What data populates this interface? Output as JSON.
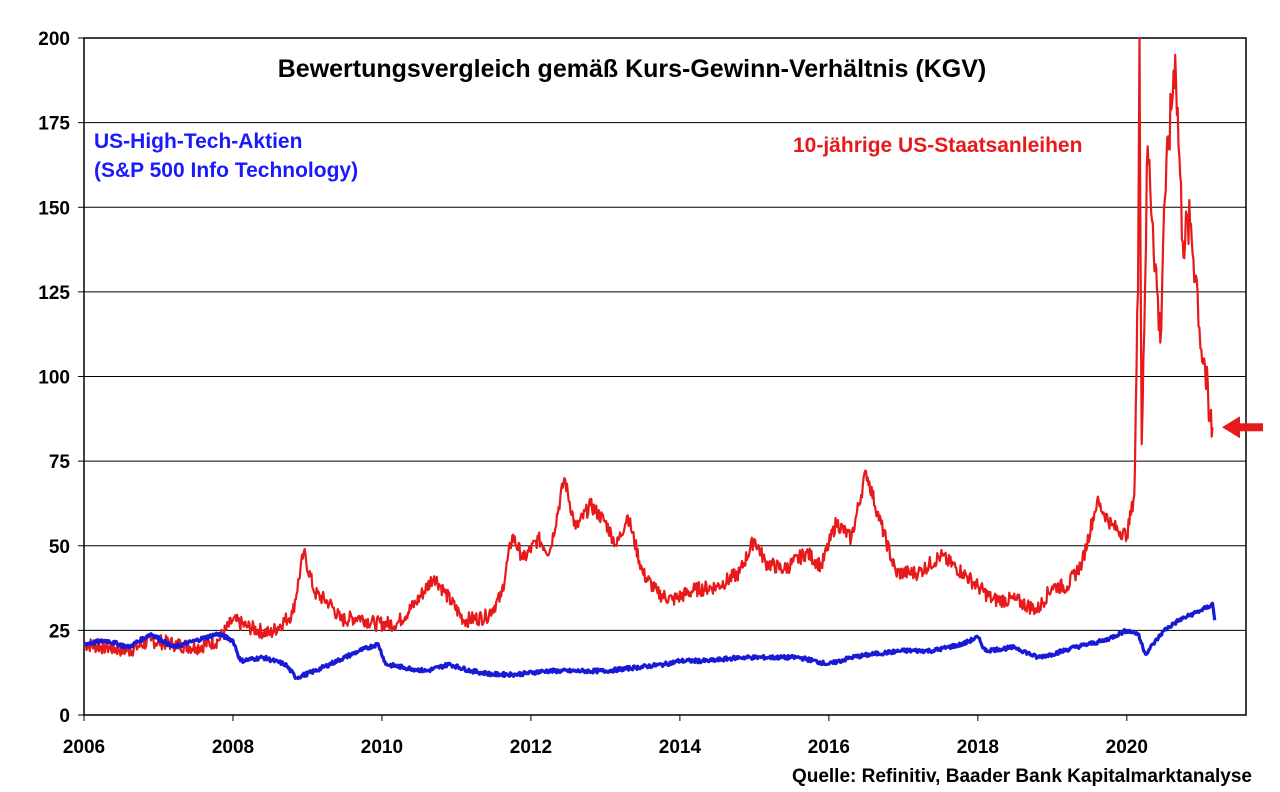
{
  "chart_data": {
    "type": "line",
    "title": "Bewertungsvergleich gemäß Kurs-Gewinn-Verhältnis (KGV)",
    "xlabel": "",
    "ylabel": "",
    "xlim": [
      2006,
      2021.6
    ],
    "ylim": [
      0,
      200
    ],
    "x_ticks": [
      "2006",
      "2008",
      "2010",
      "2012",
      "2014",
      "2016",
      "2018",
      "2020"
    ],
    "y_ticks": [
      "0",
      "25",
      "50",
      "75",
      "100",
      "125",
      "150",
      "175",
      "200"
    ],
    "grid": "horizontal",
    "series": [
      {
        "name": "10-jährige US-Staatsanleihen",
        "color": "#e8191a",
        "points": [
          [
            2006.0,
            21
          ],
          [
            2006.3,
            20
          ],
          [
            2006.6,
            19
          ],
          [
            2006.9,
            22
          ],
          [
            2007.2,
            21
          ],
          [
            2007.5,
            20
          ],
          [
            2007.8,
            22
          ],
          [
            2008.0,
            28
          ],
          [
            2008.2,
            26
          ],
          [
            2008.5,
            24
          ],
          [
            2008.8,
            30
          ],
          [
            2008.95,
            48
          ],
          [
            2009.1,
            36
          ],
          [
            2009.3,
            33
          ],
          [
            2009.45,
            28
          ],
          [
            2009.7,
            29
          ],
          [
            2009.9,
            27
          ],
          [
            2010.2,
            27
          ],
          [
            2010.45,
            33
          ],
          [
            2010.7,
            41
          ],
          [
            2010.85,
            36
          ],
          [
            2011.1,
            28
          ],
          [
            2011.4,
            29
          ],
          [
            2011.6,
            35
          ],
          [
            2011.75,
            53
          ],
          [
            2011.9,
            46
          ],
          [
            2012.1,
            52
          ],
          [
            2012.25,
            48
          ],
          [
            2012.45,
            70
          ],
          [
            2012.6,
            55
          ],
          [
            2012.8,
            62
          ],
          [
            2013.0,
            57
          ],
          [
            2013.15,
            50
          ],
          [
            2013.3,
            59
          ],
          [
            2013.5,
            42
          ],
          [
            2013.7,
            36
          ],
          [
            2013.9,
            34
          ],
          [
            2014.2,
            37
          ],
          [
            2014.5,
            38
          ],
          [
            2014.8,
            42
          ],
          [
            2015.0,
            52
          ],
          [
            2015.15,
            45
          ],
          [
            2015.4,
            43
          ],
          [
            2015.7,
            48
          ],
          [
            2015.9,
            44
          ],
          [
            2016.1,
            57
          ],
          [
            2016.3,
            52
          ],
          [
            2016.5,
            72
          ],
          [
            2016.65,
            60
          ],
          [
            2016.9,
            42
          ],
          [
            2017.2,
            42
          ],
          [
            2017.5,
            47
          ],
          [
            2017.8,
            42
          ],
          [
            2018.0,
            38
          ],
          [
            2018.2,
            34
          ],
          [
            2018.5,
            34
          ],
          [
            2018.8,
            31
          ],
          [
            2019.0,
            38
          ],
          [
            2019.2,
            38
          ],
          [
            2019.4,
            45
          ],
          [
            2019.6,
            63
          ],
          [
            2019.8,
            56
          ],
          [
            2020.0,
            53
          ],
          [
            2020.1,
            65
          ],
          [
            2020.15,
            125
          ],
          [
            2020.17,
            200
          ],
          [
            2020.2,
            80
          ],
          [
            2020.28,
            168
          ],
          [
            2020.35,
            145
          ],
          [
            2020.45,
            110
          ],
          [
            2020.5,
            150
          ],
          [
            2020.65,
            195
          ],
          [
            2020.75,
            140
          ],
          [
            2020.85,
            145
          ],
          [
            2020.95,
            125
          ],
          [
            2021.0,
            108
          ],
          [
            2021.05,
            103
          ],
          [
            2021.1,
            87
          ],
          [
            2021.15,
            85
          ]
        ]
      },
      {
        "name": "US-High-Tech-Aktien (S&P 500 Info Technology)",
        "color": "#1a1ad6",
        "points": [
          [
            2006.0,
            21
          ],
          [
            2006.3,
            22
          ],
          [
            2006.6,
            20
          ],
          [
            2006.9,
            24
          ],
          [
            2007.2,
            20
          ],
          [
            2007.5,
            22
          ],
          [
            2007.8,
            24
          ],
          [
            2008.0,
            22
          ],
          [
            2008.1,
            16
          ],
          [
            2008.4,
            17
          ],
          [
            2008.7,
            15
          ],
          [
            2008.85,
            11
          ],
          [
            2009.1,
            13
          ],
          [
            2009.4,
            16
          ],
          [
            2009.7,
            19
          ],
          [
            2009.95,
            21
          ],
          [
            2010.05,
            15
          ],
          [
            2010.3,
            14
          ],
          [
            2010.6,
            13
          ],
          [
            2010.9,
            15
          ],
          [
            2011.2,
            13
          ],
          [
            2011.5,
            12
          ],
          [
            2011.8,
            12
          ],
          [
            2012.2,
            13
          ],
          [
            2012.6,
            13
          ],
          [
            2013.0,
            13
          ],
          [
            2013.4,
            14
          ],
          [
            2013.8,
            15
          ],
          [
            2014.0,
            16
          ],
          [
            2014.4,
            16
          ],
          [
            2014.8,
            17
          ],
          [
            2015.2,
            17
          ],
          [
            2015.6,
            17
          ],
          [
            2016.0,
            15
          ],
          [
            2016.3,
            17
          ],
          [
            2016.6,
            18
          ],
          [
            2017.0,
            19
          ],
          [
            2017.4,
            19
          ],
          [
            2017.8,
            21
          ],
          [
            2018.0,
            23
          ],
          [
            2018.1,
            19
          ],
          [
            2018.5,
            20
          ],
          [
            2018.8,
            17
          ],
          [
            2019.0,
            18
          ],
          [
            2019.3,
            20
          ],
          [
            2019.7,
            22
          ],
          [
            2020.0,
            25
          ],
          [
            2020.15,
            24
          ],
          [
            2020.25,
            18
          ],
          [
            2020.5,
            25
          ],
          [
            2020.7,
            28
          ],
          [
            2020.9,
            30
          ],
          [
            2021.0,
            31
          ],
          [
            2021.1,
            32
          ],
          [
            2021.15,
            33
          ],
          [
            2021.18,
            28
          ]
        ]
      }
    ],
    "labels": {
      "blue_line1": "US-High-Tech-Aktien",
      "blue_line2": "(S&P 500 Info Technology)",
      "red": "10-jährige US-Staatsanleihen"
    },
    "annotation_arrow": {
      "x": 2021.15,
      "y": 85,
      "color": "#e8191a"
    },
    "source": "Quelle: Refinitiv, Baader Bank Kapitalmarktanalyse"
  }
}
